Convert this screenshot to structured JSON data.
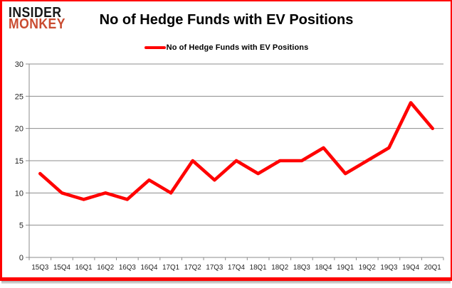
{
  "logo": {
    "line1": "INSIDER",
    "line2": "MONKEY"
  },
  "title": "No of Hedge Funds with EV Positions",
  "legend": {
    "label": "No of Hedge Funds with EV Positions"
  },
  "colors": {
    "series": "#ff0000",
    "frame_border": "#ff0000",
    "gridline": "#8c8c8c",
    "axis_text": "#1f1f1f",
    "logo_black": "#161616",
    "logo_orange": "#c94b30"
  },
  "chart_data": {
    "type": "line",
    "title": "No of Hedge Funds with EV Positions",
    "categories": [
      "15Q3",
      "15Q4",
      "16Q1",
      "16Q2",
      "16Q3",
      "16Q4",
      "17Q1",
      "17Q2",
      "17Q3",
      "17Q4",
      "18Q1",
      "18Q2",
      "18Q3",
      "18Q4",
      "19Q1",
      "19Q2",
      "19Q3",
      "19Q4",
      "20Q1"
    ],
    "series": [
      {
        "name": "No of Hedge Funds with EV Positions",
        "values": [
          13,
          10,
          9,
          10,
          9,
          12,
          10,
          15,
          12,
          15,
          13,
          15,
          15,
          17,
          13,
          15,
          17,
          24,
          20
        ]
      }
    ],
    "xlabel": "",
    "ylabel": "",
    "ylim": [
      0,
      30
    ],
    "yticks": [
      0,
      5,
      10,
      15,
      20,
      25,
      30
    ],
    "grid": true,
    "legend_position": "top-center"
  }
}
